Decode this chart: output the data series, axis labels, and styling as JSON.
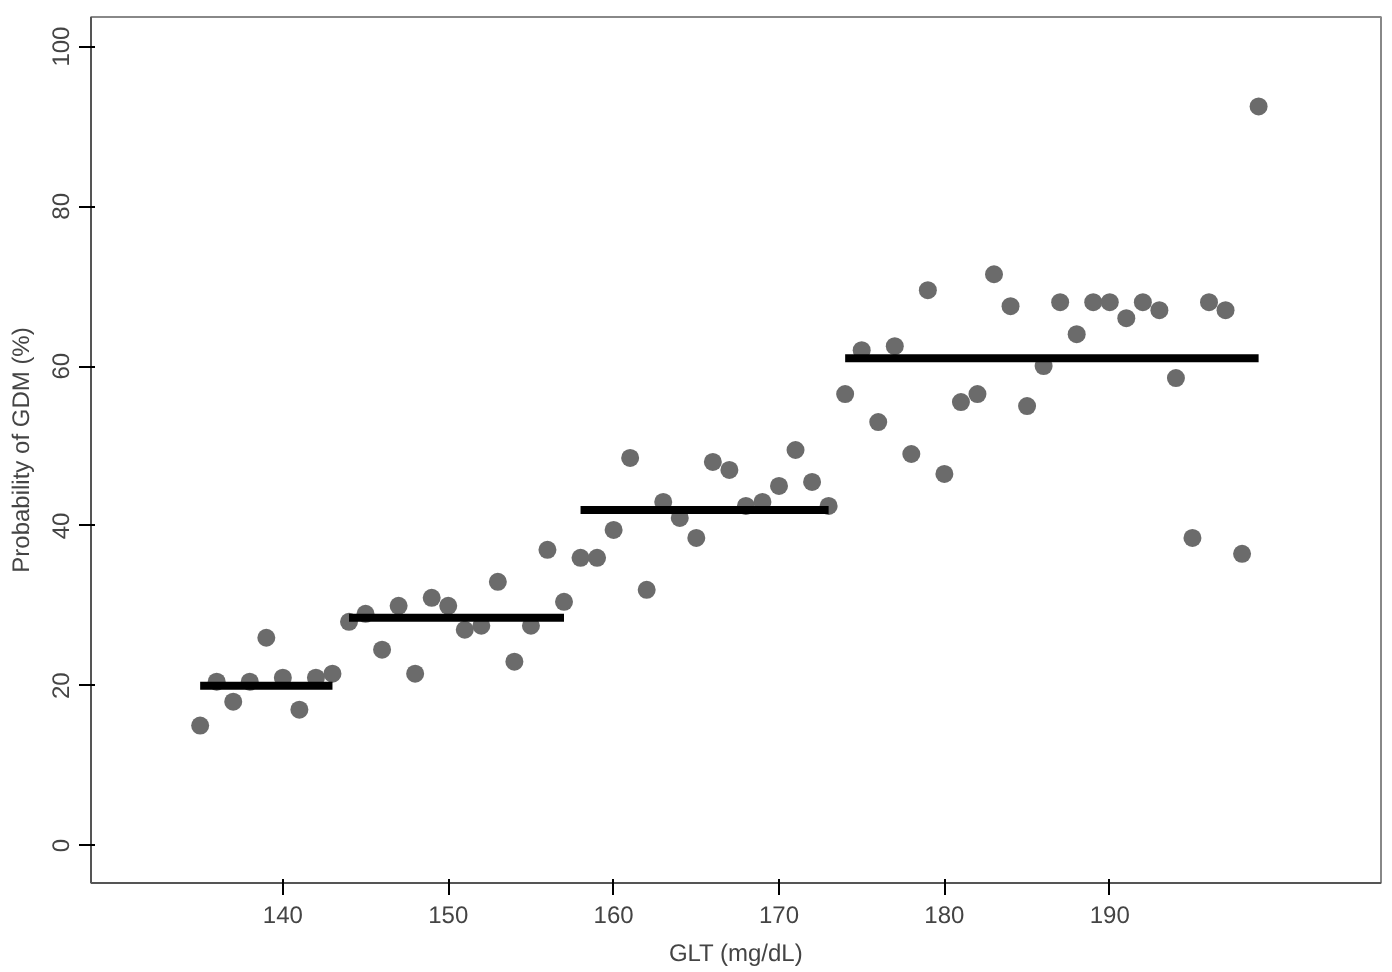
{
  "chart_data": {
    "type": "scatter",
    "xlabel": "GLT (mg/dL)",
    "ylabel": "Probability of GDM (%)",
    "x": [
      135,
      136,
      137,
      138,
      139,
      140,
      141,
      142,
      143,
      144,
      145,
      146,
      147,
      148,
      149,
      150,
      151,
      152,
      153,
      154,
      155,
      156,
      157,
      158,
      159,
      160,
      161,
      162,
      163,
      164,
      165,
      166,
      167,
      168,
      169,
      170,
      171,
      172,
      173,
      174,
      175,
      176,
      177,
      178,
      179,
      180,
      181,
      182,
      183,
      184,
      185,
      186,
      187,
      188,
      189,
      190,
      191,
      192,
      193,
      194,
      195,
      196,
      197,
      198,
      199
    ],
    "series": [
      {
        "marker": "circle",
        "color": "#6b6b6b",
        "values": [
          15,
          20.5,
          18,
          20.5,
          26,
          21,
          17,
          21,
          21.5,
          28,
          29,
          24.5,
          30,
          21.5,
          31,
          30,
          27,
          27.5,
          33,
          23,
          27.5,
          37,
          30.5,
          36,
          36,
          39.5,
          48.5,
          32,
          43,
          41,
          38.5,
          48,
          47,
          42.5,
          43,
          45,
          49.5,
          45.5,
          42.5,
          56.5,
          62,
          53,
          62.5,
          49,
          69.5,
          46.5,
          55.5,
          56.5,
          71.5,
          67.5,
          55,
          60,
          68,
          64,
          68,
          68,
          66,
          68,
          67,
          58.5,
          38.5,
          68,
          67,
          36.5,
          92.5
        ]
      },
      {
        "type": "line",
        "color": "#000000",
        "x": [
          135,
          143
        ],
        "values": [
          20,
          20
        ]
      },
      {
        "type": "line",
        "color": "#000000",
        "x": [
          144,
          157
        ],
        "values": [
          28.5,
          28.5
        ]
      },
      {
        "type": "line",
        "color": "#000000",
        "x": [
          158,
          173
        ],
        "values": [
          42,
          42
        ]
      },
      {
        "type": "line",
        "color": "#000000",
        "x": [
          174,
          199
        ],
        "values": [
          61,
          61
        ]
      }
    ],
    "xlim": [
      128.4,
      206.4
    ],
    "ylim": [
      -4.7,
      103.7
    ],
    "xticks": [
      140,
      150,
      160,
      170,
      180,
      190
    ],
    "yticks": [
      0,
      20,
      40,
      60,
      80,
      100
    ],
    "grid": false,
    "line_style": "solid"
  }
}
